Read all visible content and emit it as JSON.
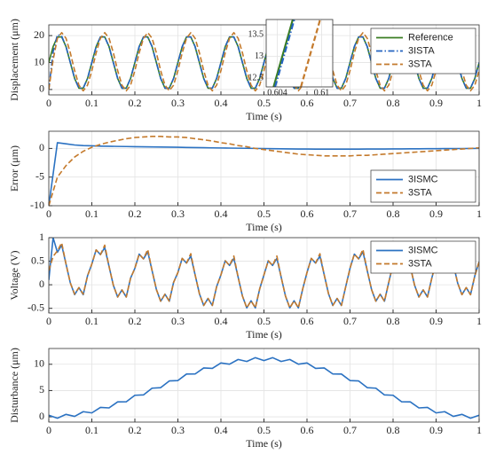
{
  "chart_data": [
    {
      "type": "line",
      "ylabel": "Displacement (μm)",
      "xlabel": "Time (s)",
      "x": [
        0,
        0.01,
        0.02,
        0.03,
        0.04,
        0.05,
        0.06,
        0.07,
        0.08,
        0.09,
        0.1,
        0.11,
        0.12,
        0.13,
        0.14,
        0.15,
        0.16,
        0.17,
        0.18,
        0.19,
        0.2,
        0.21,
        0.22,
        0.23,
        0.24,
        0.25,
        0.26,
        0.27,
        0.28,
        0.29,
        0.3,
        0.31,
        0.32,
        0.33,
        0.34,
        0.35,
        0.36,
        0.37,
        0.38,
        0.39,
        0.4,
        0.41,
        0.42,
        0.43,
        0.44,
        0.45,
        0.46,
        0.47,
        0.48,
        0.49,
        0.5,
        0.51,
        0.52,
        0.53,
        0.54,
        0.55,
        0.56,
        0.57,
        0.58,
        0.59,
        0.6,
        0.61,
        0.62,
        0.63,
        0.64,
        0.65,
        0.66,
        0.67,
        0.68,
        0.69,
        0.7,
        0.71,
        0.72,
        0.73,
        0.74,
        0.75,
        0.76,
        0.77,
        0.78,
        0.79,
        0.8,
        0.81,
        0.82,
        0.83,
        0.84,
        0.85,
        0.86,
        0.87,
        0.88,
        0.89,
        0.9,
        0.91,
        0.92,
        0.93,
        0.94,
        0.95,
        0.96,
        0.97,
        0.98,
        0.99,
        1
      ],
      "series": [
        {
          "name": "Reference",
          "color": "#3a7d22",
          "style": "solid",
          "values": [
            10,
            15.9,
            19.5,
            19.5,
            15.9,
            10,
            4.1,
            0.5,
            0.5,
            4.1,
            10,
            15.9,
            19.5,
            19.5,
            15.9,
            10,
            4.1,
            0.5,
            0.5,
            4.1,
            10,
            15.9,
            19.5,
            19.5,
            15.9,
            10,
            4.1,
            0.5,
            0.5,
            4.1,
            10,
            15.9,
            19.5,
            19.5,
            15.9,
            10,
            4.1,
            0.5,
            0.5,
            4.1,
            10,
            15.9,
            19.5,
            19.5,
            15.9,
            10,
            4.1,
            0.5,
            0.5,
            4.1,
            10,
            15.9,
            19.5,
            19.5,
            15.9,
            10,
            4.1,
            0.5,
            0.5,
            4.1,
            10,
            15.9,
            19.5,
            19.5,
            15.9,
            10,
            4.1,
            0.5,
            0.5,
            4.1,
            10,
            15.9,
            19.5,
            19.5,
            15.9,
            10,
            4.1,
            0.5,
            0.5,
            4.1,
            10,
            15.9,
            19.5,
            19.5,
            15.9,
            10,
            4.1,
            0.5,
            0.5,
            4.1,
            10,
            15.9,
            19.5,
            19.5,
            15.9,
            10,
            4.1,
            0.5,
            0.5,
            4.1,
            10
          ]
        },
        {
          "name": "3ISTA",
          "color": "#2363c0",
          "style": "dashdot",
          "values": [
            0,
            14,
            20.3,
            19.8,
            15.9,
            10,
            4.1,
            0.5,
            0.5,
            4.1,
            10,
            15.9,
            19.5,
            19.5,
            15.9,
            10,
            4.1,
            0.5,
            0.5,
            4.1,
            10,
            15.9,
            19.5,
            19.5,
            15.9,
            10,
            4.1,
            0.5,
            0.5,
            4.1,
            10,
            15.9,
            19.5,
            19.5,
            15.9,
            10,
            4.1,
            0.5,
            0.5,
            4.1,
            10,
            15.9,
            19.5,
            19.5,
            15.9,
            10,
            4.1,
            0.5,
            0.5,
            4.1,
            10,
            15.9,
            19.5,
            19.5,
            15.9,
            10,
            4.1,
            0.5,
            0.5,
            4.1,
            10,
            15.9,
            19.5,
            19.5,
            15.9,
            10,
            4.1,
            0.5,
            0.5,
            4.1,
            10,
            15.9,
            19.5,
            19.5,
            15.9,
            10,
            4.1,
            0.5,
            0.5,
            4.1,
            10,
            15.9,
            19.5,
            19.5,
            15.9,
            10,
            4.1,
            0.5,
            0.5,
            4.1,
            10,
            15.9,
            19.5,
            19.5,
            15.9,
            10,
            4.1,
            0.5,
            0.5,
            4.1,
            10
          ]
        },
        {
          "name": "3STA",
          "color": "#c47a2c",
          "style": "dashed",
          "values": [
            0,
            11,
            19.0,
            21.1,
            19.0,
            13.6,
            7.0,
            1.6,
            -0.5,
            1.6,
            7.0,
            13.6,
            19.0,
            21.1,
            19.0,
            13.6,
            7.0,
            1.6,
            -0.5,
            1.6,
            7.0,
            13.6,
            19.0,
            21.1,
            19.0,
            13.6,
            7.0,
            1.6,
            -0.5,
            1.6,
            7.0,
            13.6,
            19.0,
            21.1,
            19.0,
            13.6,
            7.0,
            1.6,
            -0.5,
            1.6,
            7.0,
            13.6,
            19.0,
            21.1,
            19.0,
            13.6,
            7.0,
            1.6,
            -0.5,
            1.6,
            7.0,
            13.6,
            19.0,
            21.1,
            19.0,
            13.6,
            7.0,
            1.6,
            -0.5,
            1.6,
            7.0,
            13.6,
            19.0,
            21.1,
            19.0,
            13.6,
            7.0,
            1.6,
            -0.5,
            1.6,
            7.0,
            13.6,
            19.0,
            21.1,
            19.0,
            13.6,
            7.0,
            1.6,
            -0.5,
            1.6,
            7.0,
            13.6,
            19.0,
            21.1,
            19.0,
            13.6,
            7.0,
            1.6,
            -0.5,
            1.6,
            7.0,
            13.6,
            19.0,
            21.1,
            19.0,
            13.6,
            7.0,
            1.6,
            -0.5,
            1.6,
            7.0
          ]
        }
      ],
      "xlim": [
        0,
        1
      ],
      "xticks": [
        0,
        0.1,
        0.2,
        0.3,
        0.4,
        0.5,
        0.6,
        0.7,
        0.8,
        0.9,
        1
      ],
      "ylim": [
        -2,
        24
      ],
      "yticks": [
        0,
        10,
        20
      ],
      "grid": true,
      "legend": "upper right",
      "inset": {
        "xlim": [
          0.6025,
          0.6115
        ],
        "ylim": [
          12.3,
          13.85
        ],
        "xticks": [
          0.604,
          0.61
        ],
        "yticks": [
          12.5,
          13,
          13.5
        ],
        "series": [
          {
            "x": [
              0.6035,
              0.6061
            ],
            "values": [
              12.3,
              13.85
            ]
          },
          {
            "x": [
              0.6037,
              0.6063
            ],
            "values": [
              12.3,
              13.85
            ]
          },
          {
            "x": [
              0.6072,
              0.6098
            ],
            "values": [
              12.3,
              13.85
            ]
          }
        ]
      }
    },
    {
      "type": "line",
      "ylabel": "Error (μm)",
      "xlabel": "Time (s)",
      "x": [
        0,
        0.02,
        0.04,
        0.06,
        0.08,
        0.1,
        0.12,
        0.14,
        0.16,
        0.18,
        0.2,
        0.22,
        0.24,
        0.26,
        0.28,
        0.3,
        0.32,
        0.34,
        0.36,
        0.38,
        0.4,
        0.42,
        0.44,
        0.46,
        0.48,
        0.5,
        0.52,
        0.54,
        0.56,
        0.58,
        0.6,
        0.62,
        0.64,
        0.66,
        0.68,
        0.7,
        0.72,
        0.74,
        0.76,
        0.78,
        0.8,
        0.82,
        0.84,
        0.86,
        0.88,
        0.9,
        0.92,
        0.94,
        0.96,
        0.98,
        1
      ],
      "series": [
        {
          "name": "3ISMC",
          "color": "#2b72c2",
          "style": "solid",
          "values": [
            -10,
            1,
            0.8,
            0.6,
            0.5,
            0.45,
            0.4,
            0.38,
            0.35,
            0.33,
            0.3,
            0.28,
            0.26,
            0.24,
            0.22,
            0.2,
            0.17,
            0.15,
            0.12,
            0.1,
            0.08,
            0.06,
            0.04,
            0.02,
            0,
            -0.02,
            -0.04,
            -0.06,
            -0.08,
            -0.1,
            -0.1,
            -0.12,
            -0.12,
            -0.12,
            -0.12,
            -0.12,
            -0.12,
            -0.1,
            -0.1,
            -0.1,
            -0.08,
            -0.08,
            -0.06,
            -0.06,
            -0.05,
            -0.04,
            -0.03,
            -0.02,
            -0.02,
            -0.01,
            0
          ]
        },
        {
          "name": "3STA",
          "color": "#c47a2c",
          "style": "dashed",
          "values": [
            -10,
            -5,
            -3,
            -1.5,
            -0.5,
            0.2,
            0.7,
            1.1,
            1.4,
            1.7,
            1.9,
            2.0,
            2.1,
            2.1,
            2.0,
            2.0,
            1.9,
            1.7,
            1.5,
            1.3,
            1.0,
            0.8,
            0.5,
            0.3,
            0,
            -0.2,
            -0.4,
            -0.6,
            -0.8,
            -1.0,
            -1.1,
            -1.2,
            -1.3,
            -1.3,
            -1.3,
            -1.3,
            -1.2,
            -1.2,
            -1.1,
            -1.0,
            -0.9,
            -0.8,
            -0.7,
            -0.6,
            -0.5,
            -0.4,
            -0.3,
            -0.2,
            -0.1,
            0,
            0.1
          ]
        }
      ],
      "xlim": [
        0,
        1
      ],
      "xticks": [
        0,
        0.1,
        0.2,
        0.3,
        0.4,
        0.5,
        0.6,
        0.7,
        0.8,
        0.9,
        1
      ],
      "ylim": [
        -10,
        3
      ],
      "yticks": [
        -10,
        -5,
        0
      ],
      "grid": true,
      "legend": "lower right"
    },
    {
      "type": "line",
      "ylabel": "Voltage (V)",
      "xlabel": "Time (s)",
      "x": [
        0,
        0.01,
        0.02,
        0.03,
        0.04,
        0.05,
        0.06,
        0.07,
        0.08,
        0.09,
        0.1,
        0.11,
        0.12,
        0.13,
        0.14,
        0.15,
        0.16,
        0.17,
        0.18,
        0.19,
        0.2,
        0.21,
        0.22,
        0.23,
        0.24,
        0.25,
        0.26,
        0.27,
        0.28,
        0.29,
        0.3,
        0.31,
        0.32,
        0.33,
        0.34,
        0.35,
        0.36,
        0.37,
        0.38,
        0.39,
        0.4,
        0.41,
        0.42,
        0.43,
        0.44,
        0.45,
        0.46,
        0.47,
        0.48,
        0.49,
        0.5,
        0.51,
        0.52,
        0.53,
        0.54,
        0.55,
        0.56,
        0.57,
        0.58,
        0.59,
        0.6,
        0.61,
        0.62,
        0.63,
        0.64,
        0.65,
        0.66,
        0.67,
        0.68,
        0.69,
        0.7,
        0.71,
        0.72,
        0.73,
        0.74,
        0.75,
        0.76,
        0.77,
        0.78,
        0.79,
        0.8,
        0.81,
        0.82,
        0.83,
        0.84,
        0.85,
        0.86,
        0.87,
        0.88,
        0.89,
        0.9,
        0.91,
        0.92,
        0.93,
        0.94,
        0.95,
        0.96,
        0.97,
        0.98,
        0.99,
        1
      ],
      "series": [
        {
          "name": "3ISMC",
          "color": "#2b72c2",
          "style": "solid",
          "values": [
            0.1,
            1.0,
            0.69,
            0.84,
            0.44,
            0.04,
            -0.21,
            -0.06,
            -0.21,
            0.19,
            0.44,
            0.74,
            0.64,
            0.79,
            0.39,
            -0.01,
            -0.26,
            -0.11,
            -0.26,
            0.14,
            0.35,
            0.65,
            0.55,
            0.7,
            0.3,
            -0.1,
            -0.35,
            -0.2,
            -0.35,
            0.05,
            0.26,
            0.56,
            0.46,
            0.61,
            0.21,
            -0.19,
            -0.44,
            -0.29,
            -0.44,
            -0.04,
            0.21,
            0.51,
            0.41,
            0.56,
            0.16,
            -0.24,
            -0.49,
            -0.34,
            -0.49,
            -0.09,
            0.21,
            0.51,
            0.41,
            0.56,
            0.16,
            -0.24,
            -0.49,
            -0.34,
            -0.49,
            -0.09,
            0.26,
            0.56,
            0.46,
            0.61,
            0.21,
            -0.19,
            -0.44,
            -0.29,
            -0.44,
            -0.04,
            0.35,
            0.65,
            0.55,
            0.7,
            0.3,
            -0.1,
            -0.35,
            -0.2,
            -0.35,
            0.05,
            0.44,
            0.74,
            0.64,
            0.79,
            0.39,
            -0.01,
            -0.26,
            -0.11,
            -0.26,
            0.14,
            0.49,
            0.79,
            0.69,
            0.84,
            0.44,
            0.04,
            -0.21,
            -0.06,
            -0.21,
            0.19,
            0.49
          ]
        },
        {
          "name": "3STA",
          "color": "#c47a2c",
          "style": "dashed",
          "values": [
            0.3,
            0.6,
            0.72,
            0.89,
            0.44,
            0.04,
            -0.2,
            -0.06,
            -0.2,
            0.19,
            0.44,
            0.74,
            0.64,
            0.84,
            0.39,
            -0.01,
            -0.26,
            -0.11,
            -0.26,
            0.14,
            0.35,
            0.65,
            0.55,
            0.75,
            0.3,
            -0.1,
            -0.35,
            -0.2,
            -0.35,
            0.05,
            0.26,
            0.56,
            0.46,
            0.66,
            0.21,
            -0.19,
            -0.44,
            -0.29,
            -0.44,
            -0.04,
            0.21,
            0.51,
            0.41,
            0.61,
            0.16,
            -0.24,
            -0.49,
            -0.34,
            -0.49,
            -0.09,
            0.21,
            0.51,
            0.41,
            0.61,
            0.16,
            -0.24,
            -0.49,
            -0.34,
            -0.49,
            -0.09,
            0.26,
            0.56,
            0.46,
            0.66,
            0.21,
            -0.19,
            -0.44,
            -0.29,
            -0.44,
            -0.04,
            0.35,
            0.65,
            0.55,
            0.75,
            0.3,
            -0.1,
            -0.35,
            -0.2,
            -0.35,
            0.05,
            0.44,
            0.74,
            0.64,
            0.84,
            0.39,
            -0.01,
            -0.26,
            -0.11,
            -0.26,
            0.14,
            0.49,
            0.79,
            0.69,
            0.89,
            0.44,
            0.04,
            -0.21,
            -0.06,
            -0.21,
            0.19,
            0.49
          ]
        }
      ],
      "xlim": [
        0,
        1
      ],
      "xticks": [
        0,
        0.1,
        0.2,
        0.3,
        0.4,
        0.5,
        0.6,
        0.7,
        0.8,
        0.9,
        1
      ],
      "ylim": [
        -0.6,
        1
      ],
      "yticks": [
        -0.5,
        0,
        0.5,
        1
      ],
      "grid": true,
      "legend": "upper right"
    },
    {
      "type": "line",
      "ylabel": "Disturbance (μm)",
      "xlabel": "Time (s)",
      "x": [
        0,
        0.02,
        0.04,
        0.06,
        0.08,
        0.1,
        0.12,
        0.14,
        0.16,
        0.18,
        0.2,
        0.22,
        0.24,
        0.26,
        0.28,
        0.3,
        0.32,
        0.34,
        0.36,
        0.38,
        0.4,
        0.42,
        0.44,
        0.46,
        0.48,
        0.5,
        0.52,
        0.54,
        0.56,
        0.58,
        0.6,
        0.62,
        0.64,
        0.66,
        0.68,
        0.7,
        0.72,
        0.74,
        0.76,
        0.78,
        0.8,
        0.82,
        0.84,
        0.86,
        0.88,
        0.9,
        0.92,
        0.94,
        0.96,
        0.98,
        1
      ],
      "series": [
        {
          "color": "#2b72c2",
          "style": "solid",
          "values": [
            0.3,
            -0.26,
            0.47,
            0.09,
            0.98,
            0.75,
            1.79,
            1.7,
            2.85,
            2.86,
            4.1,
            4.17,
            5.45,
            5.55,
            6.83,
            6.9,
            8.14,
            8.15,
            9.3,
            9.21,
            10.25,
            10.02,
            10.91,
            10.53,
            11.26,
            10.7,
            11.26,
            10.53,
            10.91,
            10.02,
            10.25,
            9.21,
            9.3,
            8.15,
            8.14,
            6.9,
            6.83,
            5.55,
            5.45,
            4.17,
            4.1,
            2.86,
            2.85,
            1.7,
            1.79,
            0.75,
            0.98,
            0.09,
            0.47,
            -0.26,
            0.3
          ]
        }
      ],
      "xlim": [
        0,
        1
      ],
      "xticks": [
        0,
        0.1,
        0.2,
        0.3,
        0.4,
        0.5,
        0.6,
        0.7,
        0.8,
        0.9,
        1
      ],
      "ylim": [
        -1,
        13
      ],
      "yticks": [
        0,
        5,
        10
      ],
      "grid": true
    }
  ]
}
